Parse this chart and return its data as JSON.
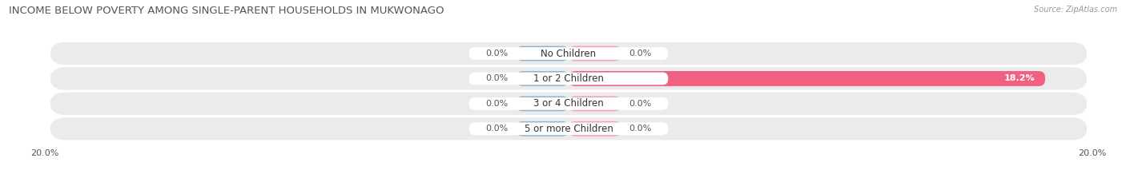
{
  "title": "INCOME BELOW POVERTY AMONG SINGLE-PARENT HOUSEHOLDS IN MUKWONAGO",
  "source": "Source: ZipAtlas.com",
  "categories": [
    "No Children",
    "1 or 2 Children",
    "3 or 4 Children",
    "5 or more Children"
  ],
  "single_father": [
    0.0,
    0.0,
    0.0,
    0.0
  ],
  "single_mother": [
    0.0,
    18.2,
    0.0,
    0.0
  ],
  "father_color": "#92b4d4",
  "mother_color_light": "#f4a0b8",
  "mother_color_dark": "#f06080",
  "row_bg_color": "#ebebeb",
  "xlim_left": -20,
  "xlim_right": 20,
  "title_fontsize": 9.5,
  "source_fontsize": 7,
  "value_fontsize": 8,
  "category_fontsize": 8.5,
  "legend_fontsize": 8.5,
  "bar_height": 0.6,
  "min_bar_width": 2.0,
  "figsize": [
    14.06,
    2.33
  ],
  "dpi": 100
}
